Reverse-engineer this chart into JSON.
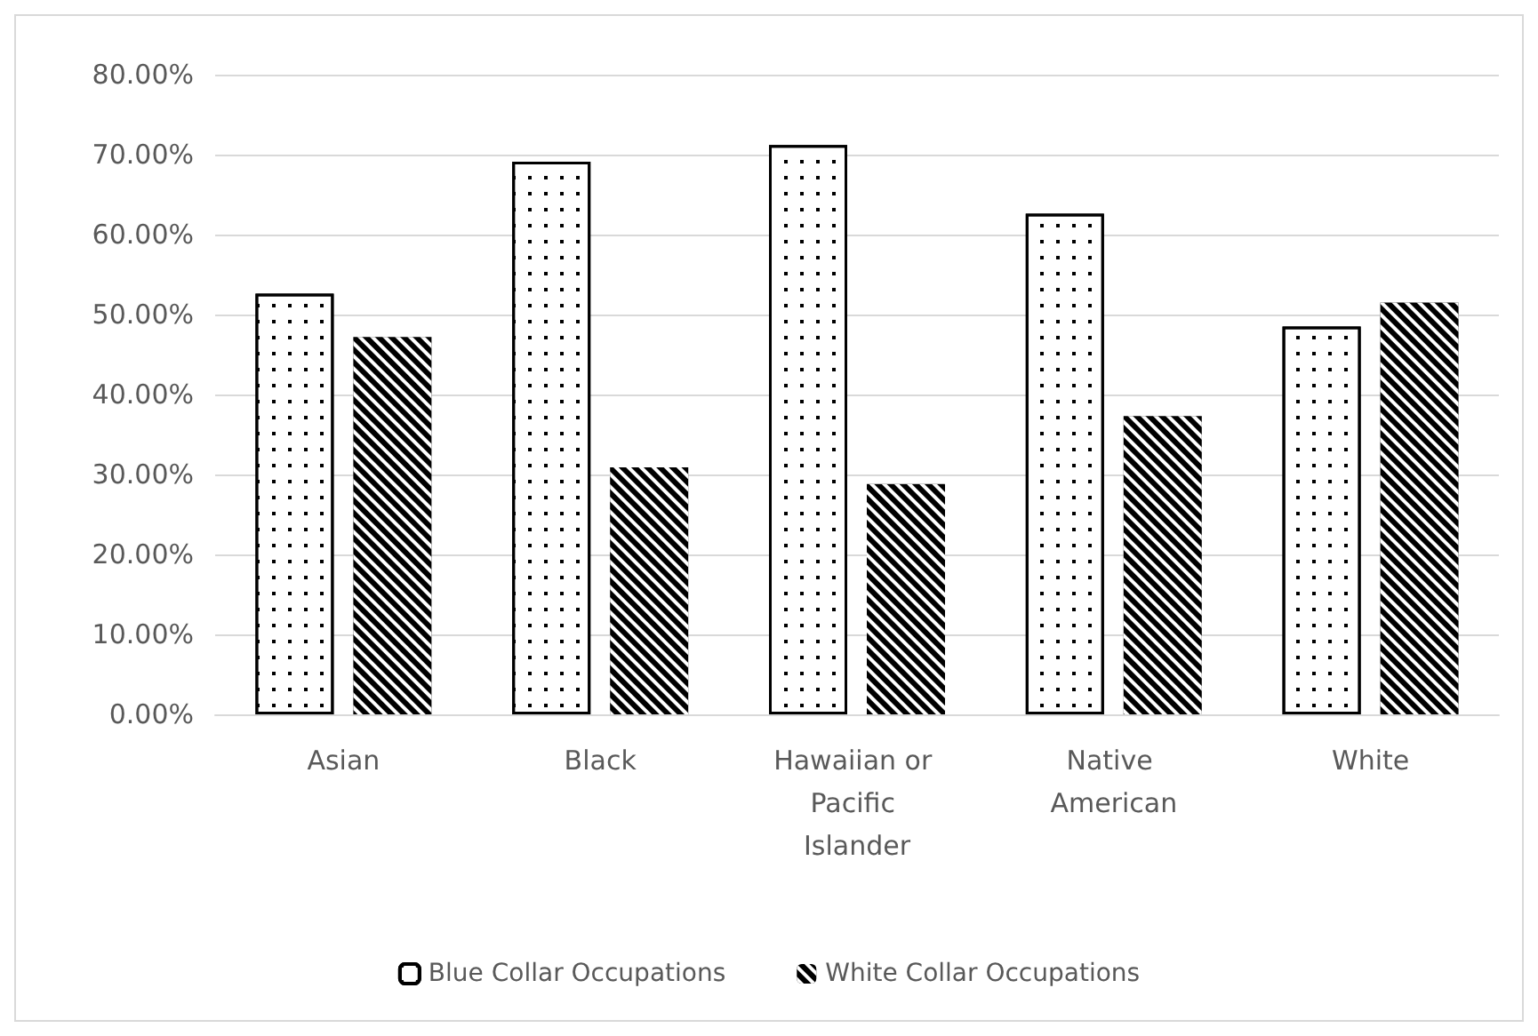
{
  "chart_data": {
    "type": "bar",
    "categories": [
      "Asian",
      "Black",
      "Hawaiian or Pacific Islander",
      "Native American",
      "White"
    ],
    "series": [
      {
        "name": "Blue Collar Occupations",
        "color": "#ffffff",
        "values": [
          52.6,
          69.1,
          71.2,
          62.6,
          48.5
        ]
      },
      {
        "name": "White Collar Occupations",
        "color": "#000000",
        "values": [
          47.2,
          30.9,
          28.8,
          37.3,
          51.5
        ]
      }
    ],
    "ylim": [
      0,
      80
    ],
    "yticks": [
      {
        "value": 0,
        "label": "0.00%"
      },
      {
        "value": 10,
        "label": "10.00%"
      },
      {
        "value": 20,
        "label": "20.00%"
      },
      {
        "value": 30,
        "label": "30.00%"
      },
      {
        "value": 40,
        "label": "40.00%"
      },
      {
        "value": 50,
        "label": "50.00%"
      },
      {
        "value": 60,
        "label": "60.00%"
      },
      {
        "value": 70,
        "label": "70.00%"
      },
      {
        "value": 80,
        "label": "80.00%"
      }
    ],
    "grid": "y",
    "legend": "bottom"
  }
}
